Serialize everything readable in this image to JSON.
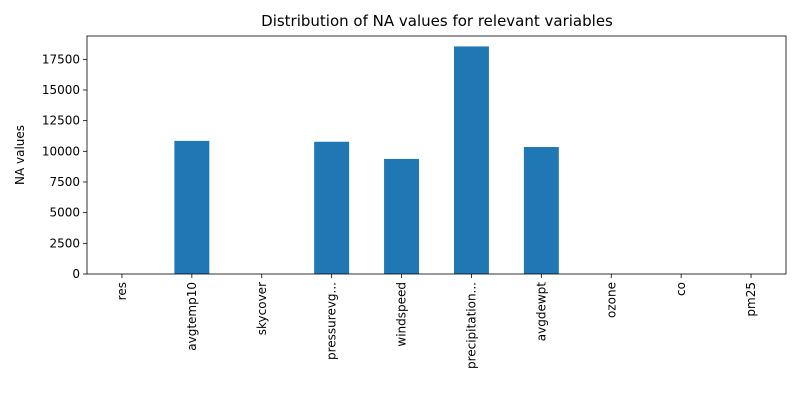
{
  "chart_data": {
    "type": "bar",
    "title": "Distribution of NA values for relevant variables",
    "xlabel": "",
    "ylabel": "NA values",
    "categories": [
      "res",
      "avgtemp10",
      "skycover",
      "pressurevg...",
      "windspeed",
      "precipitation...",
      "avgdewpt",
      "ozone",
      "co",
      "pm25"
    ],
    "values": [
      0,
      10850,
      0,
      10780,
      9380,
      18550,
      10350,
      0,
      0,
      0
    ],
    "ylim": [
      0,
      19400
    ],
    "yticks": [
      0,
      2500,
      5000,
      7500,
      10000,
      12500,
      15000,
      17500
    ],
    "bar_color": "#1f77b4",
    "grid": false,
    "legend": false
  }
}
